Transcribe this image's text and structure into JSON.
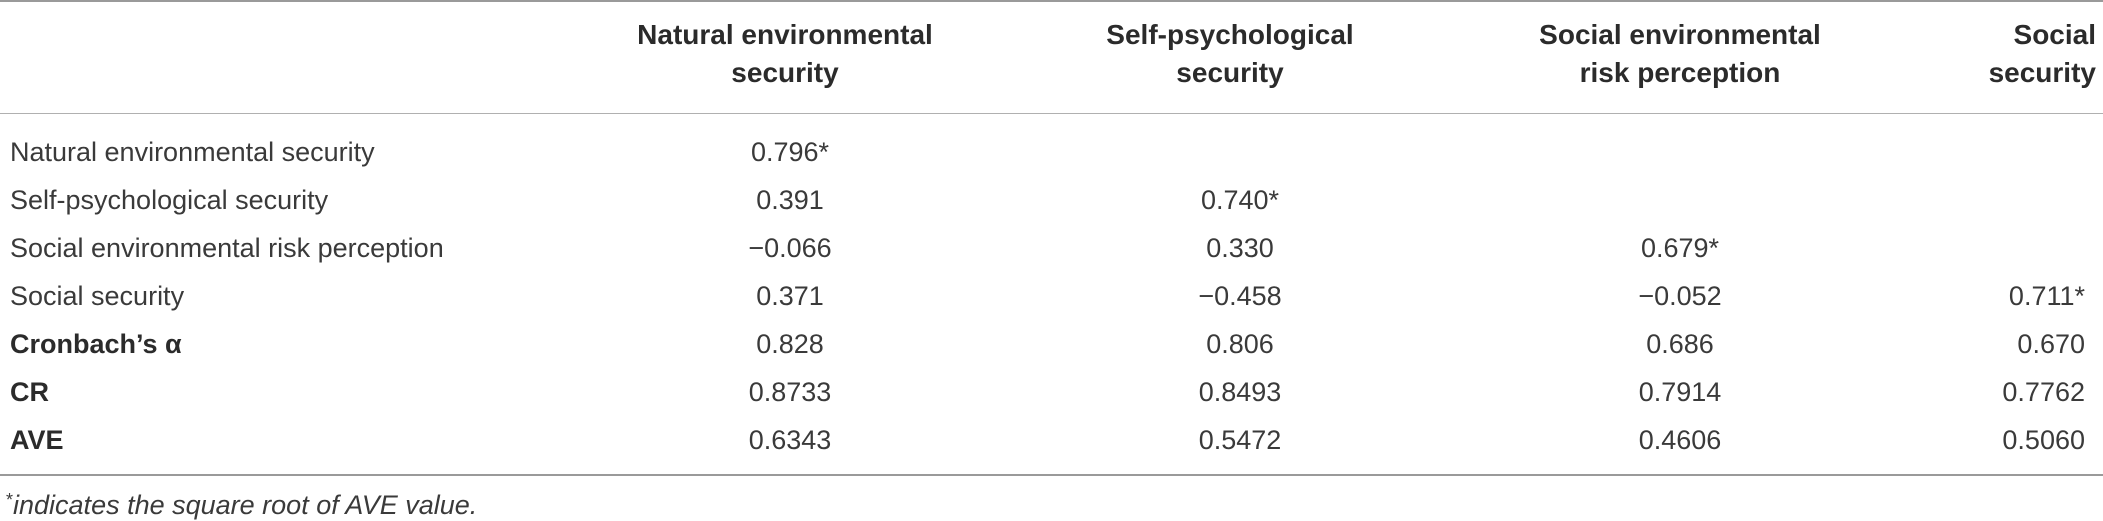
{
  "table": {
    "headers": [
      [
        "Natural environmental",
        "security"
      ],
      [
        "Self-psychological",
        "security"
      ],
      [
        "Social environmental",
        "risk perception"
      ],
      [
        "Social",
        "security"
      ]
    ],
    "rows": [
      {
        "label": "Natural environmental security",
        "bold": false,
        "values": [
          "0.796*",
          "",
          "",
          ""
        ]
      },
      {
        "label": "Self-psychological security",
        "bold": false,
        "values": [
          "0.391",
          "0.740*",
          "",
          ""
        ]
      },
      {
        "label": "Social environmental risk perception",
        "bold": false,
        "values": [
          "−0.066",
          "0.330",
          "0.679*",
          ""
        ]
      },
      {
        "label": "Social security",
        "bold": false,
        "values": [
          "0.371",
          "−0.458",
          "−0.052",
          "0.711*"
        ]
      },
      {
        "label": "Cronbach’s α",
        "bold": true,
        "values": [
          "0.828",
          "0.806",
          "0.686",
          "0.670"
        ]
      },
      {
        "label": "CR",
        "bold": true,
        "values": [
          "0.8733",
          "0.8493",
          "0.7914",
          "0.7762"
        ]
      },
      {
        "label": "AVE",
        "bold": true,
        "values": [
          "0.6343",
          "0.5472",
          "0.4606",
          "0.5060"
        ]
      }
    ]
  },
  "footnote": {
    "marker": "*",
    "text": "indicates the square root of AVE value."
  }
}
